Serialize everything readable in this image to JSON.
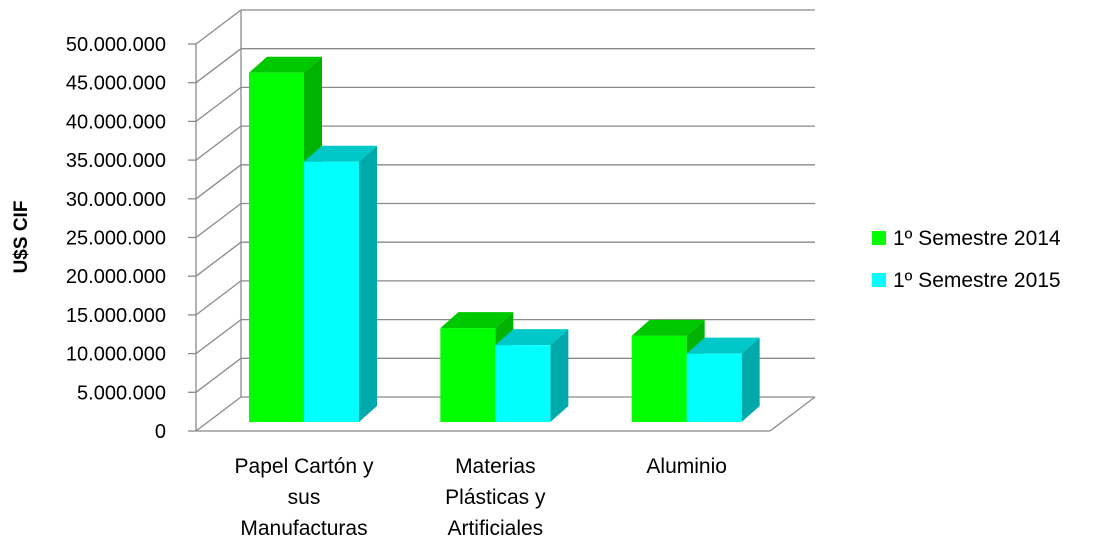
{
  "chart_data": {
    "type": "bar",
    "ylabel": "U$S CIF",
    "xlabel": "",
    "ylim": [
      0,
      50000000
    ],
    "ytick_step": 5000000,
    "yticks": [
      "0",
      "5.000.000",
      "10.000.000",
      "15.000.000",
      "20.000.000",
      "25.000.000",
      "30.000.000",
      "35.000.000",
      "40.000.000",
      "45.000.000",
      "50.000.000"
    ],
    "categories": [
      [
        "Papel Cartón y",
        "sus",
        "Manufacturas"
      ],
      [
        "Materias",
        "Plásticas y",
        "Artificiales"
      ],
      [
        "Aluminio"
      ]
    ],
    "series": [
      {
        "name": "1º Semestre 2014",
        "values": [
          45000000,
          12000000,
          11000000
        ],
        "color": "#00ff00",
        "side_color": "#00b300",
        "top_color": "#00c800"
      },
      {
        "name": "1º Semestre 2015",
        "values": [
          33500000,
          9800000,
          8700000
        ],
        "color": "#00ffff",
        "side_color": "#00aaaa",
        "top_color": "#00c8c8"
      }
    ],
    "legend_position": "right",
    "grid": true,
    "style": "3d-clustered-column"
  }
}
